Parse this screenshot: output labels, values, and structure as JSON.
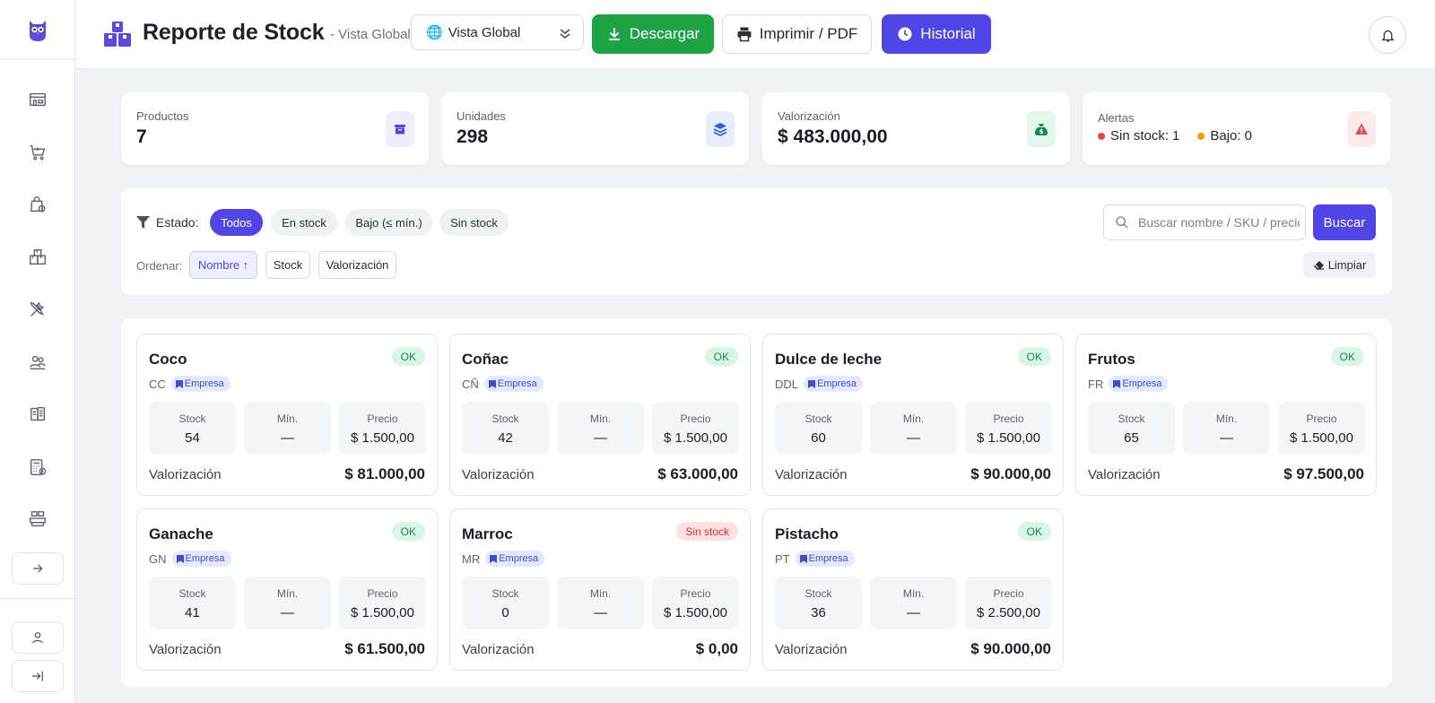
{
  "header": {
    "title": "Reporte de Stock",
    "subtitle": "- Vista Global",
    "view_select": "Vista Global",
    "download_label": "Descargar",
    "print_label": "Imprimir / PDF",
    "history_label": "Historial"
  },
  "sidebar": {
    "items": [
      "store-icon",
      "cart-icon",
      "bag-icon",
      "boxes-icon",
      "tools-icon",
      "people-icon",
      "documents-icon",
      "calculator-icon",
      "stock-icon"
    ]
  },
  "stats": {
    "products": {
      "label": "Productos",
      "value": "7"
    },
    "units": {
      "label": "Unidades",
      "value": "298"
    },
    "valuation": {
      "label": "Valorización",
      "value": "$ 483.000,00"
    },
    "alerts": {
      "label": "Alertas",
      "out_label": "Sin stock:",
      "out_value": "1",
      "low_label": "Bajo:",
      "low_value": "0"
    }
  },
  "filters": {
    "state_label": "Estado:",
    "chips": [
      "Todos",
      "En stock",
      "Bajo (≤ mín.)",
      "Sin stock"
    ],
    "active_chip": "Todos",
    "sort_label": "Ordenar:",
    "sort_options": [
      "Nombre ↑",
      "Stock",
      "Valorización"
    ],
    "search_placeholder": "Buscar nombre / SKU / precio",
    "search_button": "Buscar",
    "clear_button": "Limpiar"
  },
  "product_labels": {
    "stock": "Stock",
    "min": "Mín.",
    "price": "Precio",
    "valuation": "Valorización",
    "scope_tag": "Empresa"
  },
  "products": [
    {
      "name": "Coco",
      "sku": "CC",
      "status": "OK",
      "stock": "54",
      "min": "—",
      "price": "$ 1.500,00",
      "valuation": "$ 81.000,00"
    },
    {
      "name": "Coñac",
      "sku": "CÑ",
      "status": "OK",
      "stock": "42",
      "min": "—",
      "price": "$ 1.500,00",
      "valuation": "$ 63.000,00"
    },
    {
      "name": "Dulce de leche",
      "sku": "DDL",
      "status": "OK",
      "stock": "60",
      "min": "—",
      "price": "$ 1.500,00",
      "valuation": "$ 90.000,00"
    },
    {
      "name": "Frutos",
      "sku": "FR",
      "status": "OK",
      "stock": "65",
      "min": "—",
      "price": "$ 1.500,00",
      "valuation": "$ 97.500,00"
    },
    {
      "name": "Ganache",
      "sku": "GN",
      "status": "OK",
      "stock": "41",
      "min": "—",
      "price": "$ 1.500,00",
      "valuation": "$ 61.500,00"
    },
    {
      "name": "Marroc",
      "sku": "MR",
      "status": "Sin stock",
      "stock": "0",
      "min": "—",
      "price": "$ 1.500,00",
      "valuation": "$ 0,00"
    },
    {
      "name": "Pistacho",
      "sku": "PT",
      "status": "OK",
      "stock": "36",
      "min": "—",
      "price": "$ 2.500,00",
      "valuation": "$ 90.000,00"
    }
  ],
  "colors": {
    "primary": "#4f46e5",
    "success": "#1fa347",
    "ok_badge_bg": "#d9f5e6",
    "out_badge_bg": "#fde2e2",
    "alert_out_dot": "#e5484d",
    "alert_low_dot": "#f59e0b"
  }
}
